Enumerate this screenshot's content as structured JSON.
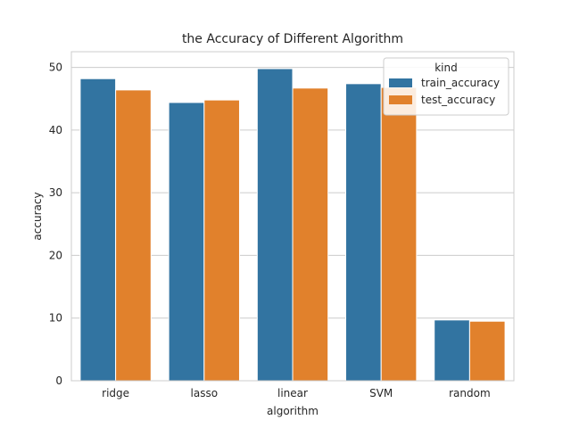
{
  "chart_data": {
    "type": "bar",
    "title": "the Accuracy of Different Algorithm",
    "xlabel": "algorithm",
    "ylabel": "accuracy",
    "categories": [
      "ridge",
      "lasso",
      "linear",
      "SVM",
      "random"
    ],
    "series": [
      {
        "name": "train_accuracy",
        "color": "#3274a1",
        "values": [
          48.2,
          44.4,
          49.8,
          47.4,
          9.7
        ]
      },
      {
        "name": "test_accuracy",
        "color": "#e1812c",
        "values": [
          46.4,
          44.8,
          46.7,
          46.8,
          9.5
        ]
      }
    ],
    "ylim": [
      0,
      52.5
    ],
    "yticks": [
      0,
      10,
      20,
      30,
      40,
      50
    ],
    "grid": "y",
    "legend": {
      "title": "kind",
      "position": "top-right"
    }
  }
}
